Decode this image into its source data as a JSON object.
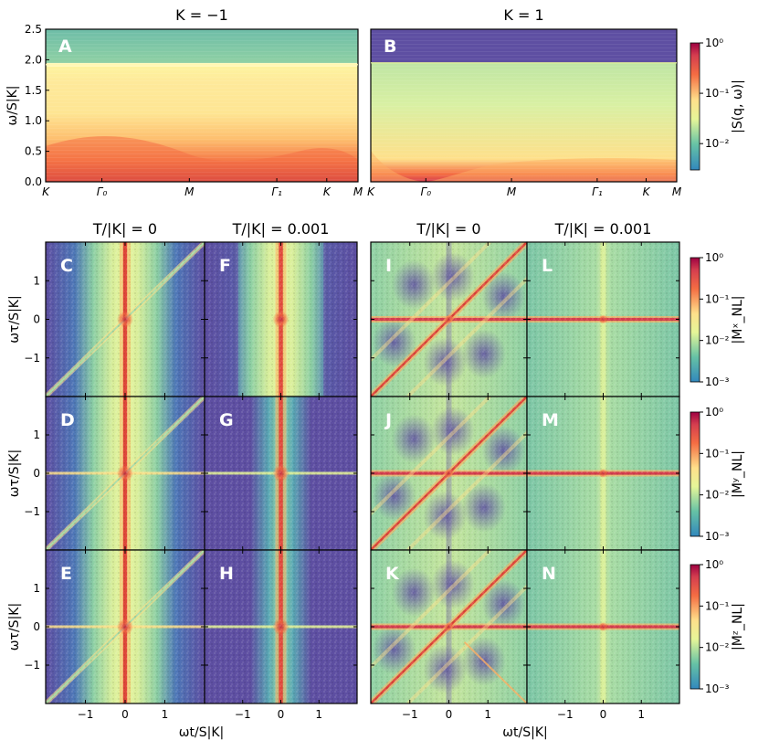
{
  "chart_data": [
    {
      "type": "heatmap",
      "panel": "A",
      "title": "K = −1",
      "ylabel": "ω/S|K|",
      "ylim": [
        0,
        2.5
      ],
      "yticks": [
        "0.0",
        "0.5",
        "1.0",
        "1.5",
        "2.0",
        "2.5"
      ],
      "yticks_values": [
        0,
        0.5,
        1.0,
        1.5,
        2.0,
        2.5
      ],
      "xticks": [
        "K",
        "Γ₀",
        "M",
        "Γ₁",
        "K",
        "M"
      ],
      "band_top": 1.92
    },
    {
      "type": "heatmap",
      "panel": "B",
      "title": "K = 1",
      "ylim": [
        0,
        2.5
      ],
      "xticks": [
        "K",
        "Γ₀",
        "M",
        "Γ₁",
        "K",
        "M"
      ],
      "band_top": 1.95,
      "colorbar": {
        "label": "|S(q, ω)|",
        "ticks": [
          "10⁰",
          "10⁻¹",
          "10⁻²"
        ],
        "range": [
          0.003,
          1
        ]
      }
    },
    {
      "type": "heatmap",
      "grid": "2D nonlinear response magnitude",
      "column_titles": [
        "T/|K| = 0",
        "T/|K| = 0.001",
        "T/|K| = 0",
        "T/|K| = 0.001"
      ],
      "panels": [
        [
          "C",
          "F",
          "I",
          "L"
        ],
        [
          "D",
          "G",
          "J",
          "M"
        ],
        [
          "E",
          "H",
          "K",
          "N"
        ]
      ],
      "ylabel": "ωτ/S|K|",
      "xlabel": "ωt/S|K|",
      "xticks": [
        "−1",
        "0",
        "1"
      ],
      "xticks_values": [
        -1,
        0,
        1
      ],
      "yticks": [
        "−1",
        "0",
        "1"
      ],
      "yticks_values": [
        -1,
        0,
        1
      ],
      "xlim": [
        -2,
        2
      ],
      "ylim": [
        -2,
        2
      ],
      "colorbars": [
        {
          "label": "|Mˣ_NL|",
          "ticks": [
            "10⁰",
            "10⁻¹",
            "10⁻²",
            "10⁻³"
          ],
          "range": [
            0.001,
            1
          ]
        },
        {
          "label": "|Mʸ_NL|",
          "ticks": [
            "10⁰",
            "10⁻¹",
            "10⁻²",
            "10⁻³"
          ],
          "range": [
            0.001,
            1
          ]
        },
        {
          "label": "|Mᶻ_NL|",
          "ticks": [
            "10⁰",
            "10⁻¹",
            "10⁻²",
            "10⁻³"
          ],
          "range": [
            0.001,
            1
          ]
        }
      ]
    }
  ],
  "colors": {
    "low": "#5e4fa2",
    "mid_low": "#3288bd",
    "mid": "#abdda4",
    "mid_high": "#fee08b",
    "high": "#f46d43",
    "max": "#9e0142"
  }
}
